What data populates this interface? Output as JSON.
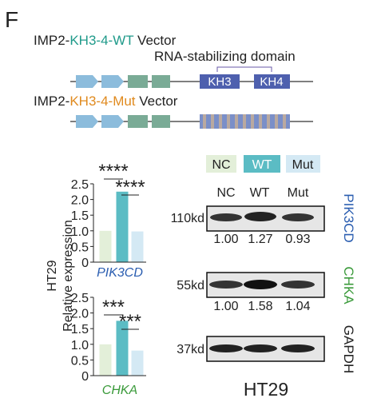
{
  "panel_label": "F",
  "constructs": [
    {
      "prefix": "IMP2-",
      "name": "KH3-4-WT",
      "suffix": " Vector",
      "domain_label": "RNA-stabilizing domain",
      "kh3": "KH3",
      "kh4": "KH4"
    },
    {
      "prefix": "IMP2-",
      "name": "KH3-4-Mut",
      "suffix": " Vector"
    }
  ],
  "y_axis_title": [
    "HT29",
    "Relative expression"
  ],
  "chart_data": [
    {
      "type": "bar",
      "title": "PIK3CD",
      "categories": [
        null,
        null,
        null
      ],
      "values": [
        1.0,
        2.25,
        0.98
      ],
      "colors": [
        "#e3efd9",
        "#5bbcc4",
        "#d4e9f4"
      ],
      "ylim": [
        0,
        2.5
      ],
      "yticks": [
        0,
        0.5,
        {
          "value": 1,
          "label": "1.0"
        },
        1.5,
        {
          "value": 2,
          "label": "2.0"
        },
        2.5
      ],
      "annotations": [
        "****",
        "****"
      ]
    },
    {
      "type": "bar",
      "title": "CHKA",
      "categories": [
        null,
        null,
        null
      ],
      "values": [
        1.0,
        1.75,
        0.8
      ],
      "colors": [
        "#e3efd9",
        "#5bbcc4",
        "#d4e9f4"
      ],
      "ylim": [
        0,
        2.5
      ],
      "yticks": [
        0,
        0.5,
        {
          "value": 1,
          "label": "1.0"
        },
        1.5,
        {
          "value": 2,
          "label": "2.0"
        },
        2.5
      ],
      "annotations": [
        "***",
        "***"
      ]
    }
  ],
  "legend": [
    "NC",
    "WT",
    "Mut"
  ],
  "blot": {
    "columns": [
      "NC",
      "WT",
      "Mut"
    ],
    "rows": [
      {
        "size": "110kd",
        "protein": "PIK3CD",
        "quant": [
          "1.00",
          "1.27",
          "0.93"
        ]
      },
      {
        "size": "55kd",
        "protein": "CHKA",
        "quant": [
          "1.00",
          "1.58",
          "1.04"
        ]
      },
      {
        "size": "37kd",
        "protein": "GAPDH"
      }
    ],
    "cell_line": "HT29"
  }
}
